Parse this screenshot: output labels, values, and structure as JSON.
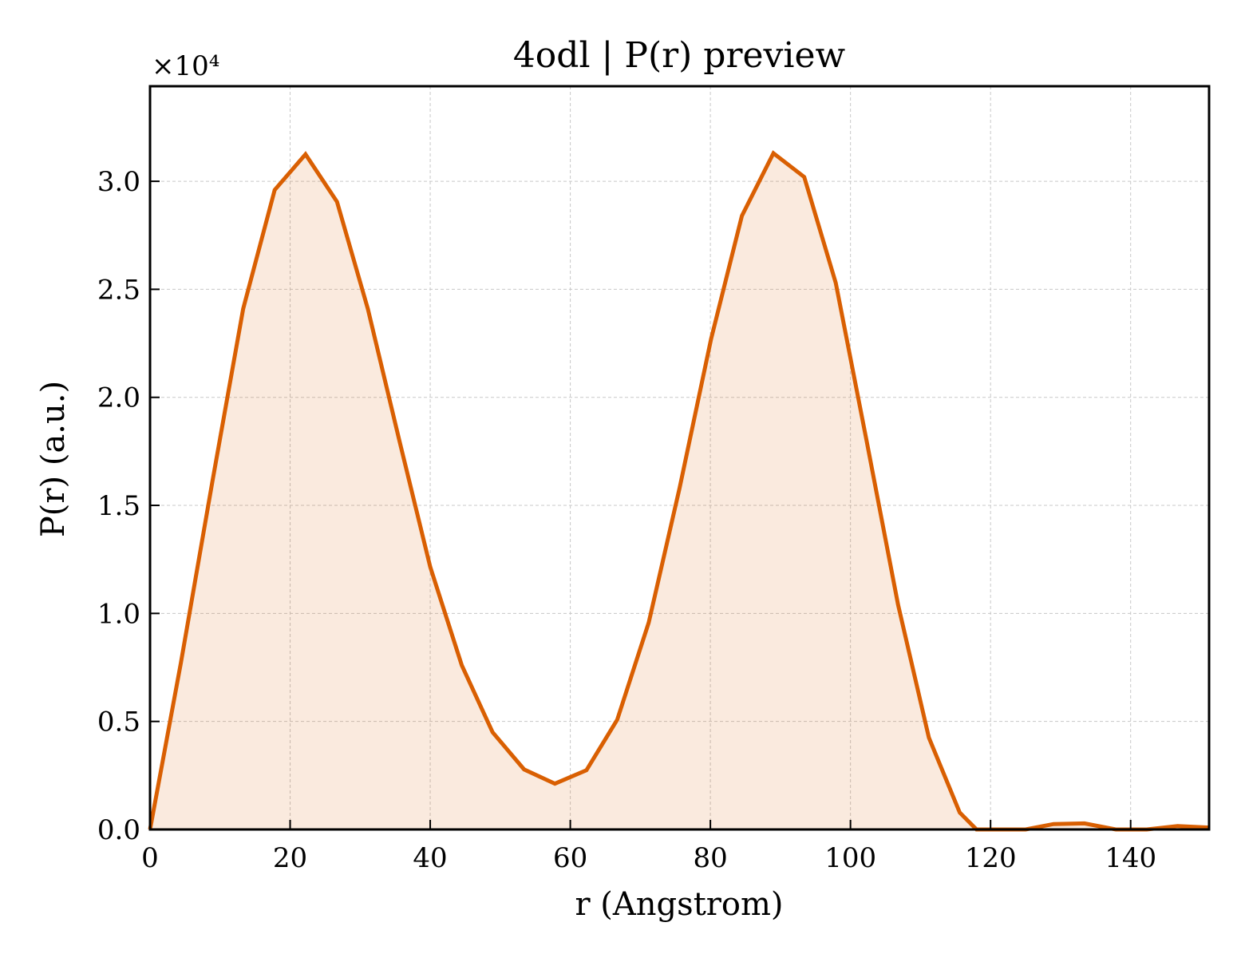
{
  "chart_data": {
    "type": "area",
    "title": "4odl | P(r) preview",
    "xlabel": "r (Angstrom)",
    "ylabel": "P(r) (a.u.)",
    "y_multiplier_label": "×10⁴",
    "y_multiplier": 10000,
    "xlim": [
      0,
      151.2
    ],
    "ylim": [
      0,
      34400
    ],
    "x_ticks": [
      0,
      20,
      40,
      60,
      80,
      100,
      120,
      140
    ],
    "x_tick_labels": [
      "0",
      "20",
      "40",
      "60",
      "80",
      "100",
      "120",
      "140"
    ],
    "y_ticks": [
      0,
      5000,
      10000,
      15000,
      20000,
      25000,
      30000
    ],
    "y_tick_labels": [
      "0.0",
      "0.5",
      "1.0",
      "1.5",
      "2.0",
      "2.5",
      "3.0"
    ],
    "grid": true,
    "series": [
      {
        "color": "#d95f02",
        "fill_color": "#d95f02",
        "fill_opacity": 0.13,
        "x": [
          0,
          4.4,
          8.9,
          13.3,
          17.8,
          22.2,
          26.7,
          31.1,
          35.6,
          40.0,
          44.5,
          48.9,
          53.4,
          57.8,
          62.3,
          66.7,
          71.2,
          75.6,
          80.1,
          84.5,
          89.0,
          93.4,
          97.9,
          102.3,
          106.8,
          111.2,
          115.6,
          118.0,
          121.0,
          125.0,
          129.0,
          133.4,
          137.9,
          142.3,
          146.7,
          151.2
        ],
        "y": [
          0,
          7700,
          16100,
          24100,
          29600,
          31250,
          29050,
          24100,
          18000,
          12150,
          7600,
          4500,
          2780,
          2120,
          2740,
          5080,
          9580,
          15800,
          22700,
          28400,
          31300,
          30200,
          25300,
          18000,
          10400,
          4250,
          780,
          0,
          0,
          0,
          250,
          280,
          0,
          0,
          160,
          90
        ]
      }
    ]
  }
}
